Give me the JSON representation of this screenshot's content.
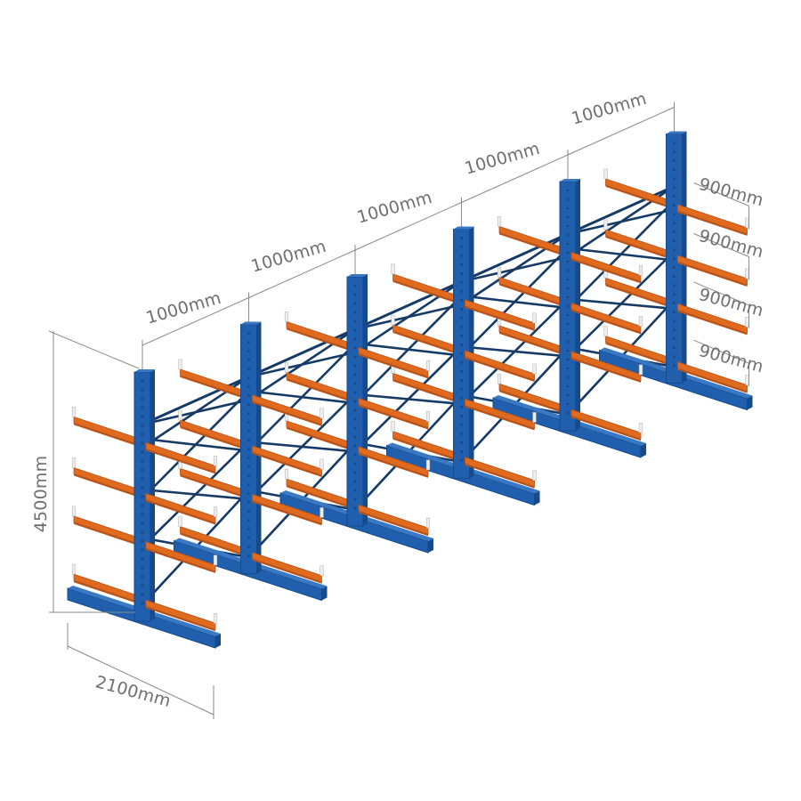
{
  "figure": {
    "subject": "double-sided cantilever rack",
    "bay_count": 5,
    "upright_count": 6,
    "arm_levels": 4,
    "colors": {
      "frame_blue": "#1f5fae",
      "frame_blue_dark": "#174a8a",
      "frame_blue_light": "#3a78c4",
      "bracing_navy": "#163a66",
      "arm_orange": "#e06a1d",
      "arm_orange_dark": "#b8531a",
      "end_stop_white": "#eeeeee",
      "dimension_gray": "#6f6f6f"
    }
  },
  "dimensions": {
    "height": "4500mm",
    "base_depth": "2100mm",
    "bay_widths": [
      "1000mm",
      "1000mm",
      "1000mm",
      "1000mm",
      "1000mm"
    ],
    "arm_lengths": [
      "900mm",
      "900mm",
      "900mm",
      "900mm"
    ]
  }
}
